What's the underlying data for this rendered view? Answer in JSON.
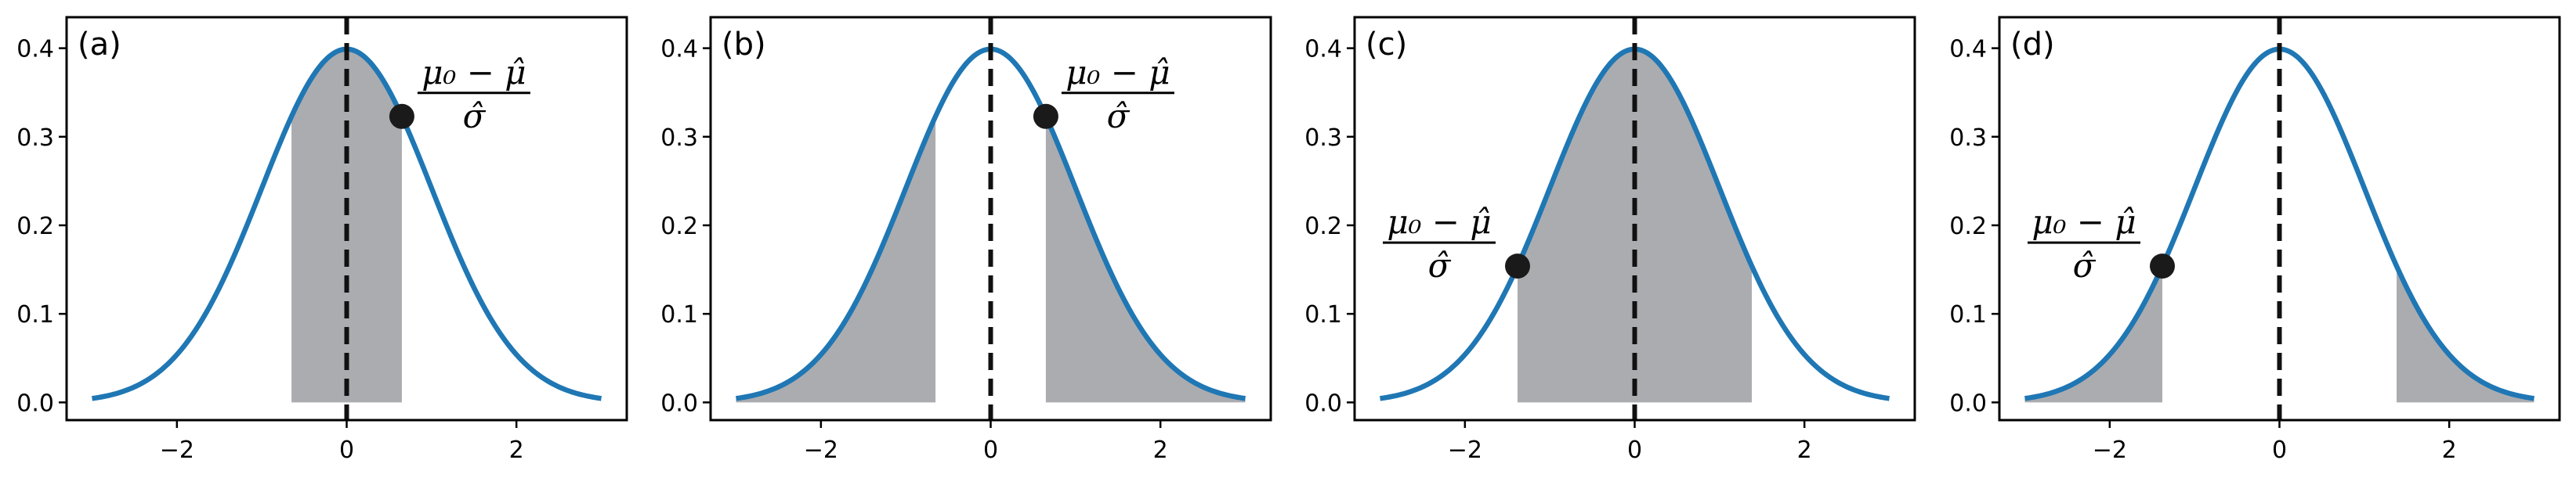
{
  "chart_data": [
    {
      "type": "area",
      "panel_label": "(a)",
      "curve": "standard normal density",
      "x_range": [
        -3,
        3
      ],
      "xlim": [
        -3.3,
        3.3
      ],
      "ylim": [
        -0.02,
        0.435
      ],
      "xticks": [
        "−2",
        "0",
        "2"
      ],
      "xtick_values": [
        -2,
        0,
        2
      ],
      "yticks": [
        "0.0",
        "0.1",
        "0.2",
        "0.3",
        "0.4"
      ],
      "ytick_values": [
        0.0,
        0.1,
        0.2,
        0.3,
        0.4
      ],
      "shaded_regions": [
        [
          -0.65,
          0.65
        ]
      ],
      "marker_x": 0.65,
      "dashed_vline_x": 0,
      "annotation": {
        "numerator": "μ₀ − μ̂",
        "denominator": "σ̂",
        "side": "right"
      }
    },
    {
      "type": "area",
      "panel_label": "(b)",
      "curve": "standard normal density",
      "x_range": [
        -3,
        3
      ],
      "xlim": [
        -3.3,
        3.3
      ],
      "ylim": [
        -0.02,
        0.435
      ],
      "xticks": [
        "−2",
        "0",
        "2"
      ],
      "xtick_values": [
        -2,
        0,
        2
      ],
      "yticks": [
        "0.0",
        "0.1",
        "0.2",
        "0.3",
        "0.4"
      ],
      "ytick_values": [
        0.0,
        0.1,
        0.2,
        0.3,
        0.4
      ],
      "shaded_regions": [
        [
          -3,
          -0.65
        ],
        [
          0.65,
          3
        ]
      ],
      "marker_x": 0.65,
      "dashed_vline_x": 0,
      "annotation": {
        "numerator": "μ₀ − μ̂",
        "denominator": "σ̂",
        "side": "right"
      }
    },
    {
      "type": "area",
      "panel_label": "(c)",
      "curve": "standard normal density",
      "x_range": [
        -3,
        3
      ],
      "xlim": [
        -3.3,
        3.3
      ],
      "ylim": [
        -0.02,
        0.435
      ],
      "xticks": [
        "−2",
        "0",
        "2"
      ],
      "xtick_values": [
        -2,
        0,
        2
      ],
      "yticks": [
        "0.0",
        "0.1",
        "0.2",
        "0.3",
        "0.4"
      ],
      "ytick_values": [
        0.0,
        0.1,
        0.2,
        0.3,
        0.4
      ],
      "shaded_regions": [
        [
          -1.38,
          1.38
        ]
      ],
      "marker_x": -1.38,
      "dashed_vline_x": 0,
      "annotation": {
        "numerator": "μ₀ − μ̂",
        "denominator": "σ̂",
        "side": "left"
      }
    },
    {
      "type": "area",
      "panel_label": "(d)",
      "curve": "standard normal density",
      "x_range": [
        -3,
        3
      ],
      "xlim": [
        -3.3,
        3.3
      ],
      "ylim": [
        -0.02,
        0.435
      ],
      "xticks": [
        "−2",
        "0",
        "2"
      ],
      "xtick_values": [
        -2,
        0,
        2
      ],
      "yticks": [
        "0.0",
        "0.1",
        "0.2",
        "0.3",
        "0.4"
      ],
      "ytick_values": [
        0.0,
        0.1,
        0.2,
        0.3,
        0.4
      ],
      "shaded_regions": [
        [
          -3,
          -1.38
        ],
        [
          1.38,
          3
        ]
      ],
      "marker_x": -1.38,
      "dashed_vline_x": 0,
      "annotation": {
        "numerator": "μ₀ − μ̂",
        "denominator": "σ̂",
        "side": "left"
      }
    }
  ],
  "colors": {
    "curve": "#1f77b4",
    "shade": "#abacb0",
    "vline": "#111111",
    "marker": "#1a1a1a",
    "axes": "#000000"
  }
}
